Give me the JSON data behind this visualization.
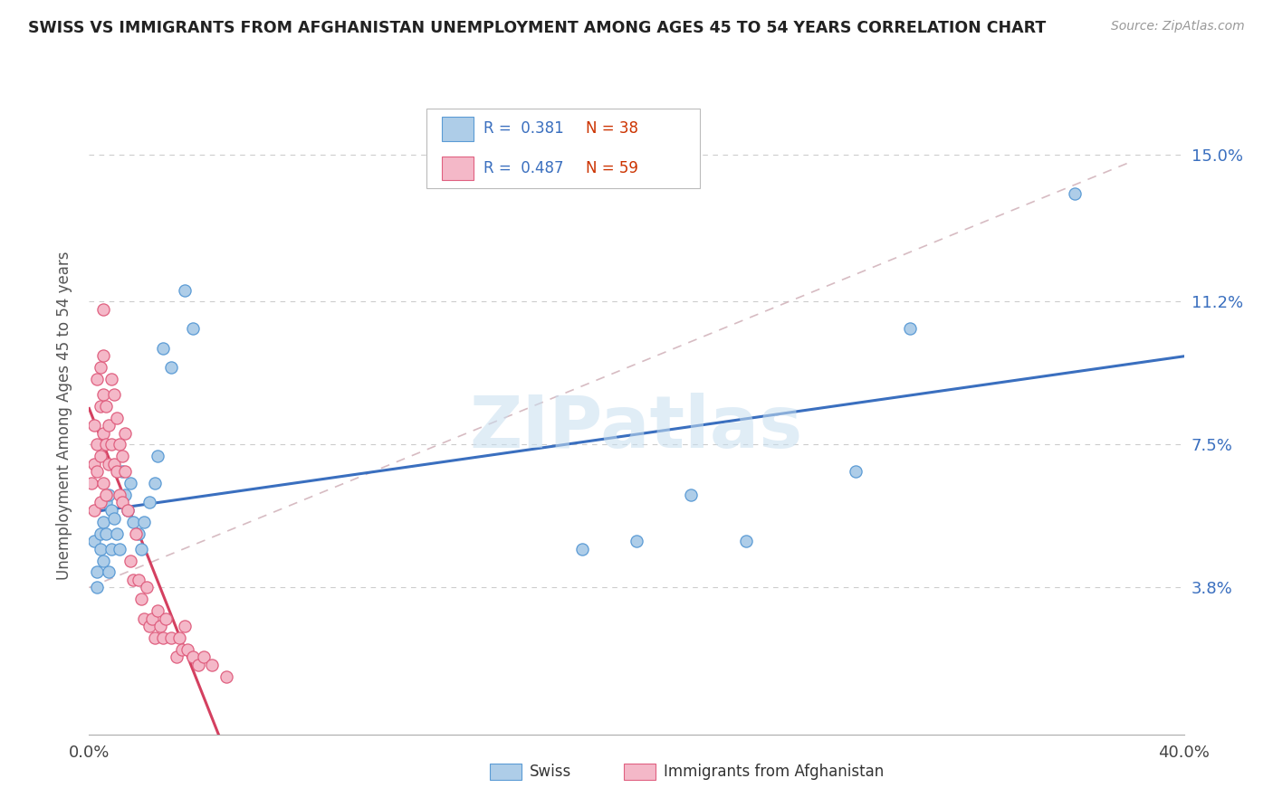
{
  "title": "SWISS VS IMMIGRANTS FROM AFGHANISTAN UNEMPLOYMENT AMONG AGES 45 TO 54 YEARS CORRELATION CHART",
  "source": "Source: ZipAtlas.com",
  "ylabel": "Unemployment Among Ages 45 to 54 years",
  "xlim": [
    0.0,
    0.4
  ],
  "ylim": [
    0.0,
    0.165
  ],
  "ytick_positions": [
    0.038,
    0.075,
    0.112,
    0.15
  ],
  "ytick_labels": [
    "3.8%",
    "7.5%",
    "11.2%",
    "15.0%"
  ],
  "swiss_color": "#aecde8",
  "swiss_edge_color": "#5b9bd5",
  "afghan_color": "#f4b8c8",
  "afghan_edge_color": "#e06080",
  "swiss_line_color": "#3a6fbf",
  "afghan_line_color": "#d44060",
  "diagonal_color": "#d0b0b8",
  "watermark": "ZIPatlas",
  "swiss_points": [
    [
      0.002,
      0.05
    ],
    [
      0.003,
      0.042
    ],
    [
      0.003,
      0.038
    ],
    [
      0.004,
      0.052
    ],
    [
      0.004,
      0.048
    ],
    [
      0.005,
      0.055
    ],
    [
      0.005,
      0.045
    ],
    [
      0.006,
      0.06
    ],
    [
      0.006,
      0.052
    ],
    [
      0.007,
      0.062
    ],
    [
      0.007,
      0.042
    ],
    [
      0.008,
      0.058
    ],
    [
      0.008,
      0.048
    ],
    [
      0.009,
      0.056
    ],
    [
      0.01,
      0.052
    ],
    [
      0.011,
      0.048
    ],
    [
      0.012,
      0.068
    ],
    [
      0.013,
      0.062
    ],
    [
      0.014,
      0.058
    ],
    [
      0.015,
      0.065
    ],
    [
      0.016,
      0.055
    ],
    [
      0.018,
      0.052
    ],
    [
      0.019,
      0.048
    ],
    [
      0.02,
      0.055
    ],
    [
      0.022,
      0.06
    ],
    [
      0.024,
      0.065
    ],
    [
      0.025,
      0.072
    ],
    [
      0.027,
      0.1
    ],
    [
      0.03,
      0.095
    ],
    [
      0.035,
      0.115
    ],
    [
      0.038,
      0.105
    ],
    [
      0.18,
      0.048
    ],
    [
      0.2,
      0.05
    ],
    [
      0.22,
      0.062
    ],
    [
      0.24,
      0.05
    ],
    [
      0.28,
      0.068
    ],
    [
      0.3,
      0.105
    ],
    [
      0.36,
      0.14
    ]
  ],
  "afghan_points": [
    [
      0.001,
      0.065
    ],
    [
      0.002,
      0.08
    ],
    [
      0.002,
      0.07
    ],
    [
      0.002,
      0.058
    ],
    [
      0.003,
      0.075
    ],
    [
      0.003,
      0.092
    ],
    [
      0.003,
      0.068
    ],
    [
      0.004,
      0.095
    ],
    [
      0.004,
      0.085
    ],
    [
      0.004,
      0.072
    ],
    [
      0.004,
      0.06
    ],
    [
      0.005,
      0.11
    ],
    [
      0.005,
      0.098
    ],
    [
      0.005,
      0.088
    ],
    [
      0.005,
      0.078
    ],
    [
      0.005,
      0.065
    ],
    [
      0.006,
      0.085
    ],
    [
      0.006,
      0.075
    ],
    [
      0.006,
      0.062
    ],
    [
      0.007,
      0.08
    ],
    [
      0.007,
      0.07
    ],
    [
      0.008,
      0.092
    ],
    [
      0.008,
      0.075
    ],
    [
      0.009,
      0.088
    ],
    [
      0.009,
      0.07
    ],
    [
      0.01,
      0.082
    ],
    [
      0.01,
      0.068
    ],
    [
      0.011,
      0.075
    ],
    [
      0.011,
      0.062
    ],
    [
      0.012,
      0.072
    ],
    [
      0.012,
      0.06
    ],
    [
      0.013,
      0.068
    ],
    [
      0.013,
      0.078
    ],
    [
      0.014,
      0.058
    ],
    [
      0.015,
      0.045
    ],
    [
      0.016,
      0.04
    ],
    [
      0.017,
      0.052
    ],
    [
      0.018,
      0.04
    ],
    [
      0.019,
      0.035
    ],
    [
      0.02,
      0.03
    ],
    [
      0.021,
      0.038
    ],
    [
      0.022,
      0.028
    ],
    [
      0.023,
      0.03
    ],
    [
      0.024,
      0.025
    ],
    [
      0.025,
      0.032
    ],
    [
      0.026,
      0.028
    ],
    [
      0.027,
      0.025
    ],
    [
      0.028,
      0.03
    ],
    [
      0.03,
      0.025
    ],
    [
      0.032,
      0.02
    ],
    [
      0.033,
      0.025
    ],
    [
      0.034,
      0.022
    ],
    [
      0.035,
      0.028
    ],
    [
      0.036,
      0.022
    ],
    [
      0.038,
      0.02
    ],
    [
      0.04,
      0.018
    ],
    [
      0.042,
      0.02
    ],
    [
      0.045,
      0.018
    ],
    [
      0.05,
      0.015
    ]
  ]
}
